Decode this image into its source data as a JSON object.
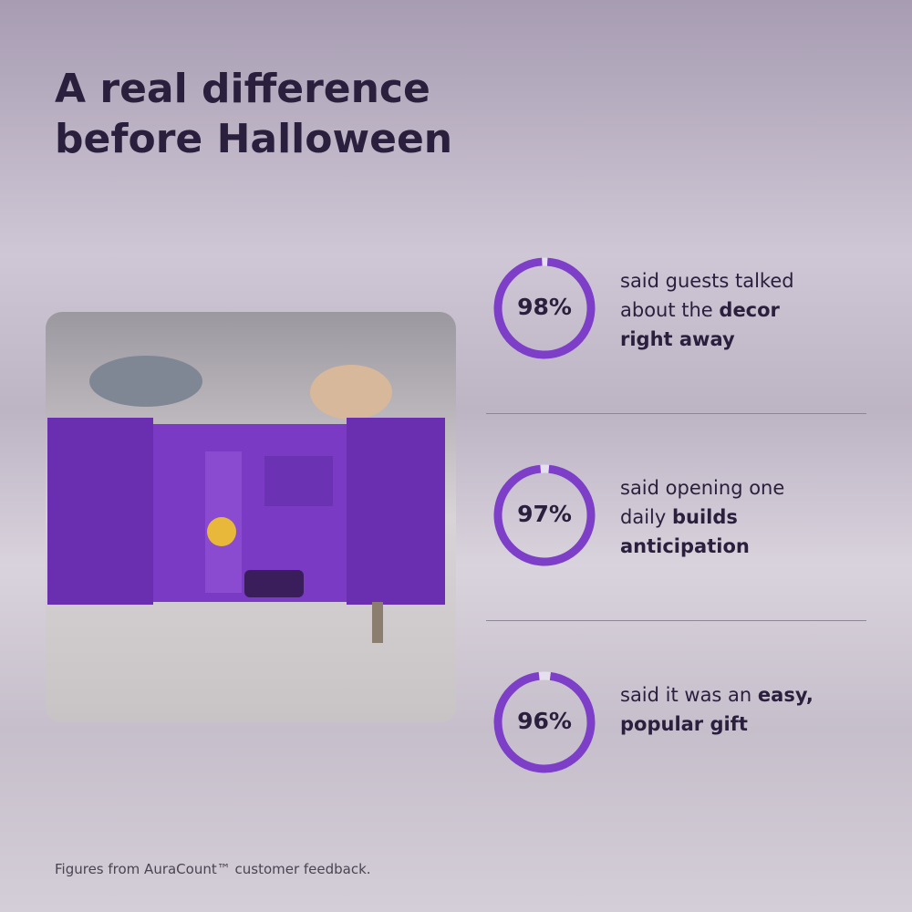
{
  "header": {
    "title_lines": [
      "A real difference",
      "before Halloween"
    ]
  },
  "stats": [
    {
      "value": 98,
      "value_label": "98%",
      "text_parts": [
        {
          "text": "said guests talked about the ",
          "bold": false
        },
        {
          "text": "decor right away",
          "bold": true
        }
      ]
    },
    {
      "value": 97,
      "value_label": "97%",
      "text_parts": [
        {
          "text": "said opening one daily ",
          "bold": false
        },
        {
          "text": "builds anticipation",
          "bold": true
        }
      ]
    },
    {
      "value": 96,
      "value_label": "96%",
      "text_parts": [
        {
          "text": "said it was an ",
          "bold": false
        },
        {
          "text": "easy, popular gift",
          "bold": true
        }
      ]
    }
  ],
  "footer": "Figures from AuraCount™ customer feedback."
}
